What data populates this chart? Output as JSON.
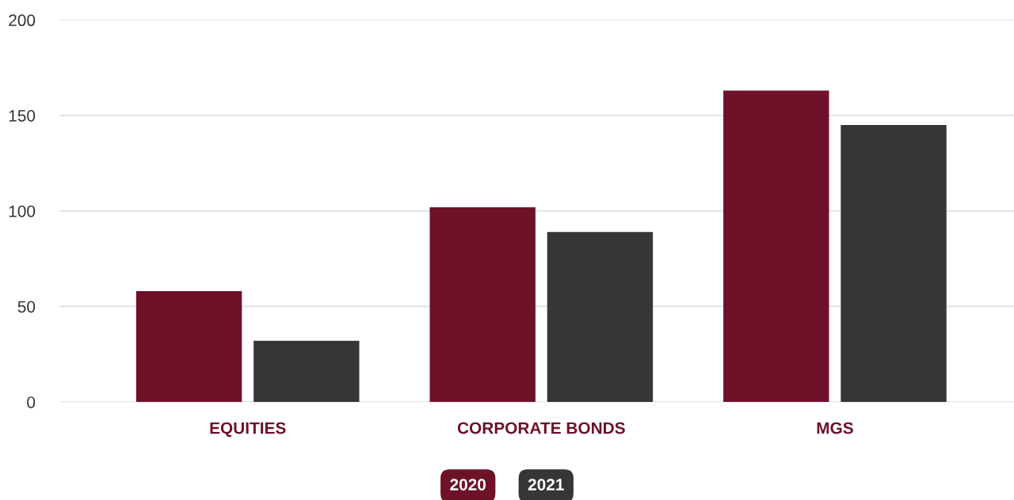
{
  "chart_data": {
    "type": "bar",
    "categories": [
      "EQUITIES",
      "CORPORATE BONDS",
      "MGS"
    ],
    "series": [
      {
        "name": "2020",
        "color": "#6e1229",
        "values": [
          58,
          102,
          163
        ]
      },
      {
        "name": "2021",
        "color": "#363636",
        "values": [
          32,
          89,
          145
        ]
      }
    ],
    "ylim": [
      0,
      200
    ],
    "yticks": [
      0,
      50,
      100,
      150,
      200
    ],
    "grid": "y",
    "legend": "bottom"
  }
}
